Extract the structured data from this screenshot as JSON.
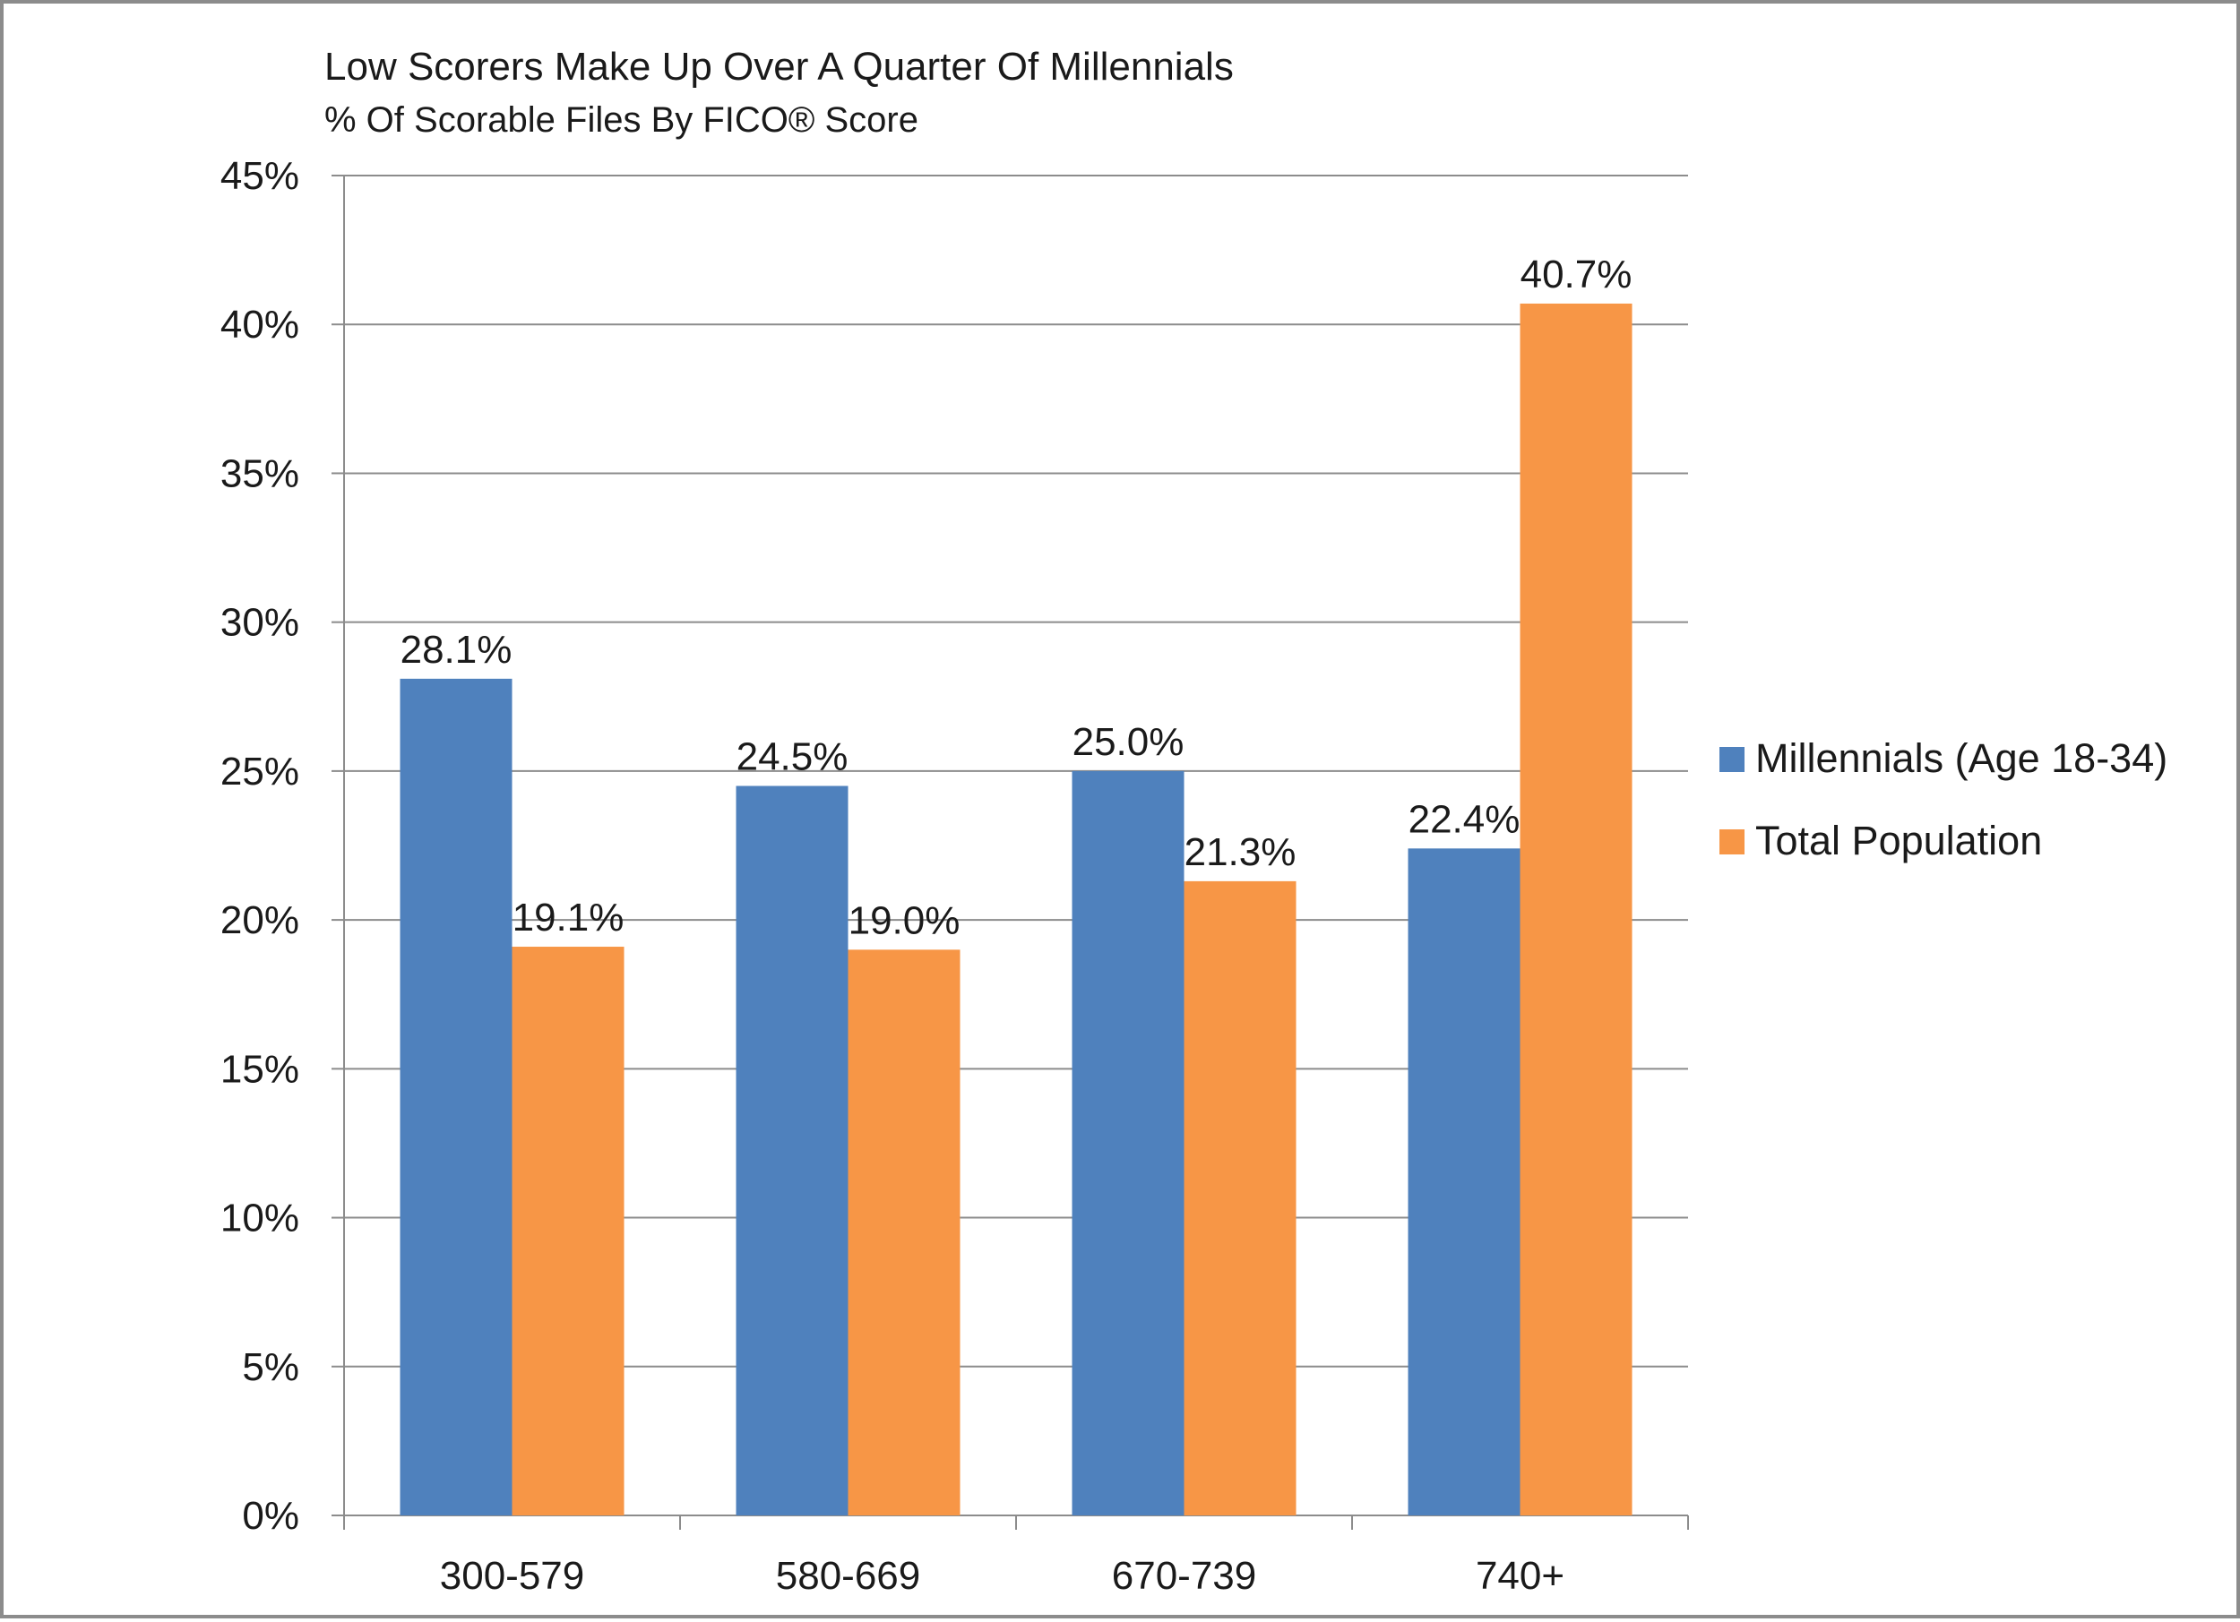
{
  "chart_data": {
    "type": "bar",
    "title": "Low Scorers Make Up Over A Quarter Of Millennials",
    "subtitle": "% Of Scorable Files By FICO® Score",
    "categories": [
      "300-579",
      "580-669",
      "670-739",
      "740+"
    ],
    "series": [
      {
        "name": "Millennials (Age 18-34)",
        "color": "#4f81bd",
        "values": [
          28.1,
          24.5,
          25.0,
          22.4
        ],
        "labels": [
          "28.1%",
          "24.5%",
          "25.0%",
          "22.4%"
        ]
      },
      {
        "name": "Total Population",
        "color": "#f79646",
        "values": [
          19.1,
          19.0,
          21.3,
          40.7
        ],
        "labels": [
          "19.1%",
          "19.0%",
          "21.3%",
          "40.7%"
        ]
      }
    ],
    "ylim": [
      0,
      45
    ],
    "yticks": [
      0,
      5,
      10,
      15,
      20,
      25,
      30,
      35,
      40,
      45
    ],
    "ytick_labels": [
      "0%",
      "5%",
      "10%",
      "15%",
      "20%",
      "25%",
      "30%",
      "35%",
      "40%",
      "45%"
    ],
    "xlabel": "",
    "ylabel": "",
    "grid": true,
    "legend_position": "right"
  }
}
